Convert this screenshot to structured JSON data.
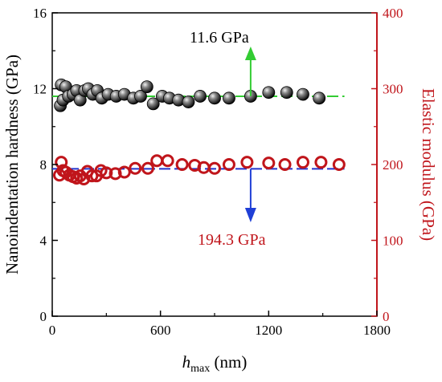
{
  "chart_data": {
    "type": "scatter",
    "x_axis": {
      "label_main": "h",
      "label_sub": "max",
      "label_unit": " (nm)",
      "range": [
        0,
        1800
      ],
      "ticks": [
        "0",
        "600",
        "1200",
        "1800"
      ]
    },
    "y_left": {
      "label": "Nanoindentation hardness (GPa)",
      "range": [
        0,
        16
      ],
      "ticks": [
        "0",
        "4",
        "8",
        "12",
        "16"
      ]
    },
    "y_right": {
      "label": "Elastic modulus (GPa)",
      "range": [
        0,
        400
      ],
      "ticks": [
        "0",
        "100",
        "200",
        "300",
        "400"
      ]
    },
    "series": [
      {
        "name": "Nanoindentation hardness",
        "axis": "left",
        "marker": "filled-sphere",
        "color": "#222222",
        "points": [
          [
            45,
            11.1
          ],
          [
            50,
            12.2
          ],
          [
            60,
            11.4
          ],
          [
            75,
            12.1
          ],
          [
            90,
            11.6
          ],
          [
            115,
            11.7
          ],
          [
            135,
            11.9
          ],
          [
            155,
            11.4
          ],
          [
            180,
            11.9
          ],
          [
            200,
            12.0
          ],
          [
            225,
            11.7
          ],
          [
            250,
            11.9
          ],
          [
            275,
            11.5
          ],
          [
            310,
            11.7
          ],
          [
            355,
            11.6
          ],
          [
            400,
            11.7
          ],
          [
            450,
            11.5
          ],
          [
            490,
            11.6
          ],
          [
            525,
            12.1
          ],
          [
            560,
            11.2
          ],
          [
            610,
            11.6
          ],
          [
            650,
            11.5
          ],
          [
            700,
            11.4
          ],
          [
            755,
            11.3
          ],
          [
            820,
            11.6
          ],
          [
            900,
            11.5
          ],
          [
            980,
            11.5
          ],
          [
            1100,
            11.6
          ],
          [
            1200,
            11.8
          ],
          [
            1300,
            11.8
          ],
          [
            1390,
            11.7
          ],
          [
            1480,
            11.5
          ]
        ]
      },
      {
        "name": "Elastic modulus",
        "axis": "right",
        "marker": "open-circle",
        "color": "#c0151b",
        "points": [
          [
            40,
            186
          ],
          [
            50,
            203
          ],
          [
            60,
            192
          ],
          [
            75,
            190
          ],
          [
            95,
            186
          ],
          [
            115,
            184
          ],
          [
            135,
            182
          ],
          [
            155,
            185
          ],
          [
            175,
            181
          ],
          [
            195,
            191
          ],
          [
            220,
            185
          ],
          [
            245,
            185
          ],
          [
            270,
            192
          ],
          [
            300,
            189
          ],
          [
            350,
            188
          ],
          [
            400,
            190
          ],
          [
            460,
            195
          ],
          [
            530,
            195
          ],
          [
            580,
            205
          ],
          [
            640,
            205
          ],
          [
            720,
            200
          ],
          [
            790,
            199
          ],
          [
            840,
            196
          ],
          [
            900,
            195
          ],
          [
            980,
            200
          ],
          [
            1080,
            203
          ],
          [
            1200,
            202
          ],
          [
            1290,
            200
          ],
          [
            1390,
            203
          ],
          [
            1490,
            203
          ],
          [
            1590,
            200
          ]
        ]
      }
    ],
    "fit_lines": [
      {
        "axis": "left",
        "value": 11.6,
        "x_range": [
          0,
          1620
        ],
        "color": "#33cc33",
        "style": "dashed"
      },
      {
        "axis": "right",
        "value": 194.3,
        "x_range": [
          0,
          1620
        ],
        "color": "#2233cc",
        "style": "dashed"
      }
    ],
    "annotations": [
      {
        "text": "11.6 GPa",
        "color": "#000000",
        "arrow_color": "#33cc33",
        "arrow_x": 1100,
        "arrow_direction": "up"
      },
      {
        "text": "194.3 GPa",
        "color": "#c0151b",
        "arrow_color": "#1f3fd6",
        "arrow_x": 1100,
        "arrow_direction": "down"
      }
    ],
    "colors": {
      "left_axis": "#000000",
      "right_axis": "#c0151b"
    },
    "grid": false,
    "legend": "none"
  }
}
